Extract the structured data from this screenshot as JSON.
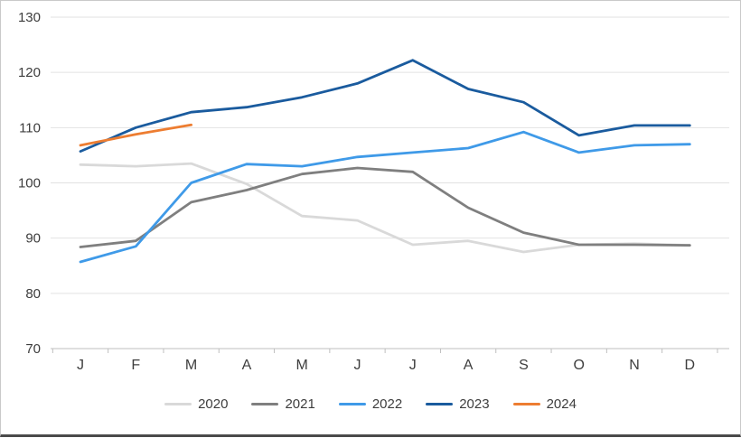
{
  "chart_data": {
    "type": "line",
    "title": "",
    "xlabel": "",
    "ylabel": "",
    "ylim": [
      70,
      130
    ],
    "y_ticks": [
      70,
      80,
      90,
      100,
      110,
      120,
      130
    ],
    "grid": true,
    "legend_position": "bottom",
    "categories": [
      "J",
      "F",
      "M",
      "A",
      "M",
      "J",
      "J",
      "A",
      "S",
      "O",
      "N",
      "D"
    ],
    "series": [
      {
        "name": "2020",
        "color": "#d9d9d9",
        "values": [
          103.3,
          103.0,
          103.5,
          99.8,
          94.0,
          93.2,
          88.8,
          89.5,
          87.5,
          88.8,
          89.0,
          88.7
        ]
      },
      {
        "name": "2021",
        "color": "#7f7f7f",
        "values": [
          88.4,
          89.5,
          96.5,
          98.7,
          101.6,
          102.7,
          102.0,
          95.5,
          91.0,
          88.8,
          88.8,
          88.7
        ]
      },
      {
        "name": "2022",
        "color": "#3f9ae8",
        "values": [
          85.7,
          88.5,
          100.0,
          103.4,
          103.0,
          104.7,
          105.5,
          106.3,
          109.2,
          105.5,
          106.8,
          107.0
        ]
      },
      {
        "name": "2023",
        "color": "#1a5b9e",
        "values": [
          105.7,
          110.0,
          112.8,
          113.7,
          115.5,
          118.0,
          122.2,
          117.0,
          114.6,
          108.6,
          110.4,
          110.4
        ]
      },
      {
        "name": "2024",
        "color": "#ed7d31",
        "values": [
          106.8,
          108.8,
          110.5,
          null,
          null,
          null,
          null,
          null,
          null,
          null,
          null,
          null
        ]
      }
    ],
    "style": {
      "gridline_color": "#e2e2e2",
      "axis_color": "#bfbfbf",
      "tick_label_color": "#3d3d3d"
    }
  }
}
